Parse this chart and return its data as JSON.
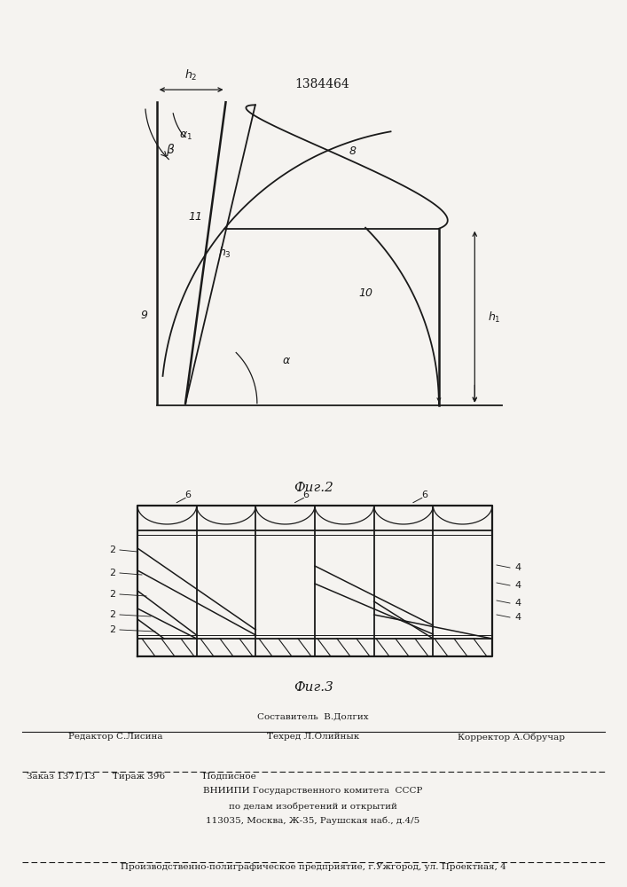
{
  "patent_number": "1384464",
  "background_color": "#f5f3f0",
  "line_color": "#1a1a1a",
  "fig2_caption": "Τиг.2",
  "fig3_caption": "Τиг.3",
  "sestavitel": "Составитель  В.Долгих",
  "redaktor": "Редактор С.Лисина",
  "tehred": "Техред Л.Олийнык",
  "korrektor": "Корректор А.Обручар",
  "zakaz": "Заказ 1371/13",
  "tirazh": "Тираж 396",
  "podpisnoe": "Подписное",
  "vniipи": "ВНИИПИ Государственного комитета  СССР",
  "po_delam": "по делам изобретений и открытий",
  "address": "113035, Москва, Ж-35, Раушская наб., д.4/5",
  "footer_last": "Производственно-полиграфическое предприятие, г.Ужгород, ул. Проектная, 4"
}
